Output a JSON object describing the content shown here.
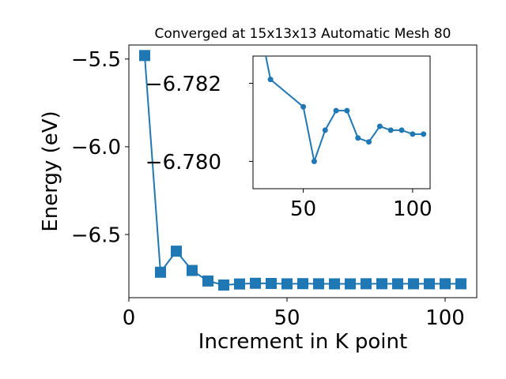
{
  "chart_data": [
    {
      "type": "line",
      "title": "Converged at 15x13x13 Automatic Mesh 80",
      "xlabel": "Increment in K point",
      "ylabel": "Energy (eV)",
      "xlim": [
        0,
        110
      ],
      "ylim": [
        -6.86,
        -5.42
      ],
      "xticks": [
        0,
        50,
        100
      ],
      "xtick_labels": [
        "0",
        "50",
        "100"
      ],
      "yticks": [
        -5.5,
        -6.0,
        -6.5
      ],
      "ytick_labels": [
        "−5.5",
        "−6.0",
        "−6.5"
      ],
      "marker": "square",
      "color": "#1f77b4",
      "x": [
        5,
        10,
        15,
        20,
        25,
        30,
        35,
        40,
        45,
        50,
        55,
        60,
        65,
        70,
        75,
        80,
        85,
        90,
        95,
        100,
        105
      ],
      "y": [
        -5.48,
        -6.715,
        -6.595,
        -6.705,
        -6.765,
        -6.788,
        -6.782,
        -6.778,
        -6.779,
        -6.781,
        -6.78,
        -6.7808,
        -6.7812,
        -6.7812,
        -6.7806,
        -6.7805,
        -6.7808,
        -6.7808,
        -6.7808,
        -6.7807,
        -6.7808
      ]
    },
    {
      "type": "line",
      "title": "",
      "xlabel": "",
      "ylabel": "",
      "xlim": [
        27,
        108
      ],
      "ylim": [
        -6.7793,
        -6.7827
      ],
      "xticks": [
        50,
        100
      ],
      "xtick_labels": [
        "50",
        "100"
      ],
      "yticks": [
        -6.782,
        -6.78
      ],
      "ytick_labels": [
        "−6.782",
        "−6.780"
      ],
      "marker": "circle",
      "color": "#1f77b4",
      "x": [
        30,
        35,
        50,
        55,
        60,
        65,
        70,
        75,
        80,
        85,
        90,
        95,
        100,
        105
      ],
      "y": [
        -6.7835,
        -6.7821,
        -6.7814,
        -6.78,
        -6.7808,
        -6.7813,
        -6.7813,
        -6.7806,
        -6.7805,
        -6.7809,
        -6.7808,
        -6.7808,
        -6.7807,
        -6.7807
      ]
    }
  ]
}
